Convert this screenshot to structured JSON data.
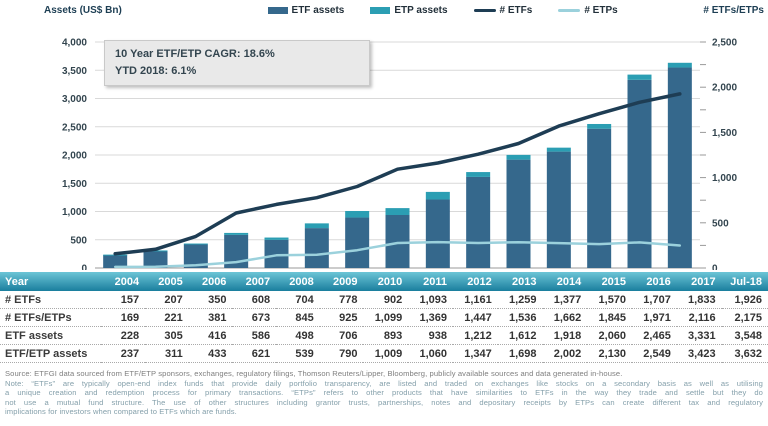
{
  "chart": {
    "left_axis_title": "Assets (US$ Bn)",
    "right_axis_title": "# ETFs/ETPs",
    "left_tick_labels": [
      "4,000",
      "3,500",
      "3,000",
      "2,500",
      "2,000",
      "1,500",
      "1,000",
      "500",
      "0"
    ],
    "right_tick_labels": [
      "2,500",
      "2,000",
      "1,500",
      "1,000",
      "500",
      "0"
    ]
  },
  "legend": [
    {
      "label": "ETF assets",
      "type": "bar",
      "color": "#35688c"
    },
    {
      "label": "ETP assets",
      "type": "bar",
      "color": "#2b9eb3"
    },
    {
      "label": "# ETFs",
      "type": "line",
      "color": "#1e3d54"
    },
    {
      "label": "# ETPs",
      "type": "line",
      "color": "#9bd1dc"
    }
  ],
  "annotation": {
    "line1": "10 Year ETF/ETP CAGR: 18.6%",
    "line2": "YTD 2018: 6.1%"
  },
  "chart_data": {
    "type": "bar",
    "subtype": "stacked-bars-with-lines",
    "categories": [
      "2004",
      "2005",
      "2006",
      "2007",
      "2008",
      "2009",
      "2010",
      "2011",
      "2012",
      "2013",
      "2014",
      "2015",
      "2016",
      "2017",
      "Jul-18"
    ],
    "series": [
      {
        "name": "ETF assets",
        "type": "bar",
        "axis": "left",
        "color": "#35688c",
        "values": [
          228,
          305,
          416,
          586,
          498,
          706,
          893,
          938,
          1212,
          1612,
          1918,
          2060,
          2465,
          3331,
          3548
        ]
      },
      {
        "name": "ETP assets",
        "type": "bar",
        "axis": "left",
        "color": "#2b9eb3",
        "stacked_on": "ETF assets",
        "values": [
          9,
          6,
          17,
          35,
          41,
          84,
          116,
          122,
          135,
          86,
          84,
          70,
          84,
          92,
          84
        ]
      },
      {
        "name": "# ETFs",
        "type": "line",
        "axis": "right",
        "color": "#1e3d54",
        "values": [
          157,
          207,
          350,
          608,
          704,
          778,
          902,
          1093,
          1161,
          1259,
          1377,
          1570,
          1707,
          1833,
          1926
        ]
      },
      {
        "name": "# ETPs",
        "type": "line",
        "axis": "right",
        "color": "#9bd1dc",
        "values": [
          12,
          14,
          31,
          65,
          141,
          147,
          197,
          276,
          286,
          277,
          285,
          275,
          264,
          283,
          249
        ]
      }
    ],
    "title": "",
    "xlabel": "",
    "ylabel_left": "Assets (US$ Bn)",
    "ylabel_right": "# ETFs/ETPs",
    "ylim_left": [
      0,
      4000
    ],
    "ylim_right": [
      0,
      2500
    ],
    "grid": true,
    "legend_position": "top"
  },
  "table": {
    "header": [
      "Year",
      "2004",
      "2005",
      "2006",
      "2007",
      "2008",
      "2009",
      "2010",
      "2011",
      "2012",
      "2013",
      "2014",
      "2015",
      "2016",
      "2017",
      "Jul-18"
    ],
    "rows": [
      {
        "label": "# ETFs",
        "values": [
          "157",
          "207",
          "350",
          "608",
          "704",
          "778",
          "902",
          "1,093",
          "1,161",
          "1,259",
          "1,377",
          "1,570",
          "1,707",
          "1,833",
          "1,926"
        ]
      },
      {
        "label": "# ETFs/ETPs",
        "values": [
          "169",
          "221",
          "381",
          "673",
          "845",
          "925",
          "1,099",
          "1,369",
          "1,447",
          "1,536",
          "1,662",
          "1,845",
          "1,971",
          "2,116",
          "2,175"
        ]
      },
      {
        "label": "ETF assets",
        "values": [
          "228",
          "305",
          "416",
          "586",
          "498",
          "706",
          "893",
          "938",
          "1,212",
          "1,612",
          "1,918",
          "2,060",
          "2,465",
          "3,331",
          "3,548"
        ]
      },
      {
        "label": "ETF/ETP assets",
        "values": [
          "237",
          "311",
          "433",
          "621",
          "539",
          "790",
          "1,009",
          "1,060",
          "1,347",
          "1,698",
          "2,002",
          "2,130",
          "2,549",
          "3,423",
          "3,632"
        ]
      }
    ]
  },
  "footnotes": {
    "source": "Source: ETFGI data sourced from ETF/ETP sponsors, exchanges, regulatory filings, Thomson Reuters/Lipper, Bloomberg, publicly available sources and data generated in-house.",
    "note_lines": [
      "Note: “ETFs” are typically open-end index funds that provide daily portfolio transparency,  are listed and traded on exchanges like stocks on a secondary basis as well as utilising",
      "a unique creation and redemption process for primary transactions.  “ETPs” refers to other products that have similarities to ETFs in the way they trade and settle but they do",
      "not use a mutual  fund structure.  The use of other structures  including grantor trusts,  partnerships,  notes and depositary receipts by ETPs can create different tax and regulatory",
      "implications for investors when compared to ETFs which are funds."
    ]
  }
}
